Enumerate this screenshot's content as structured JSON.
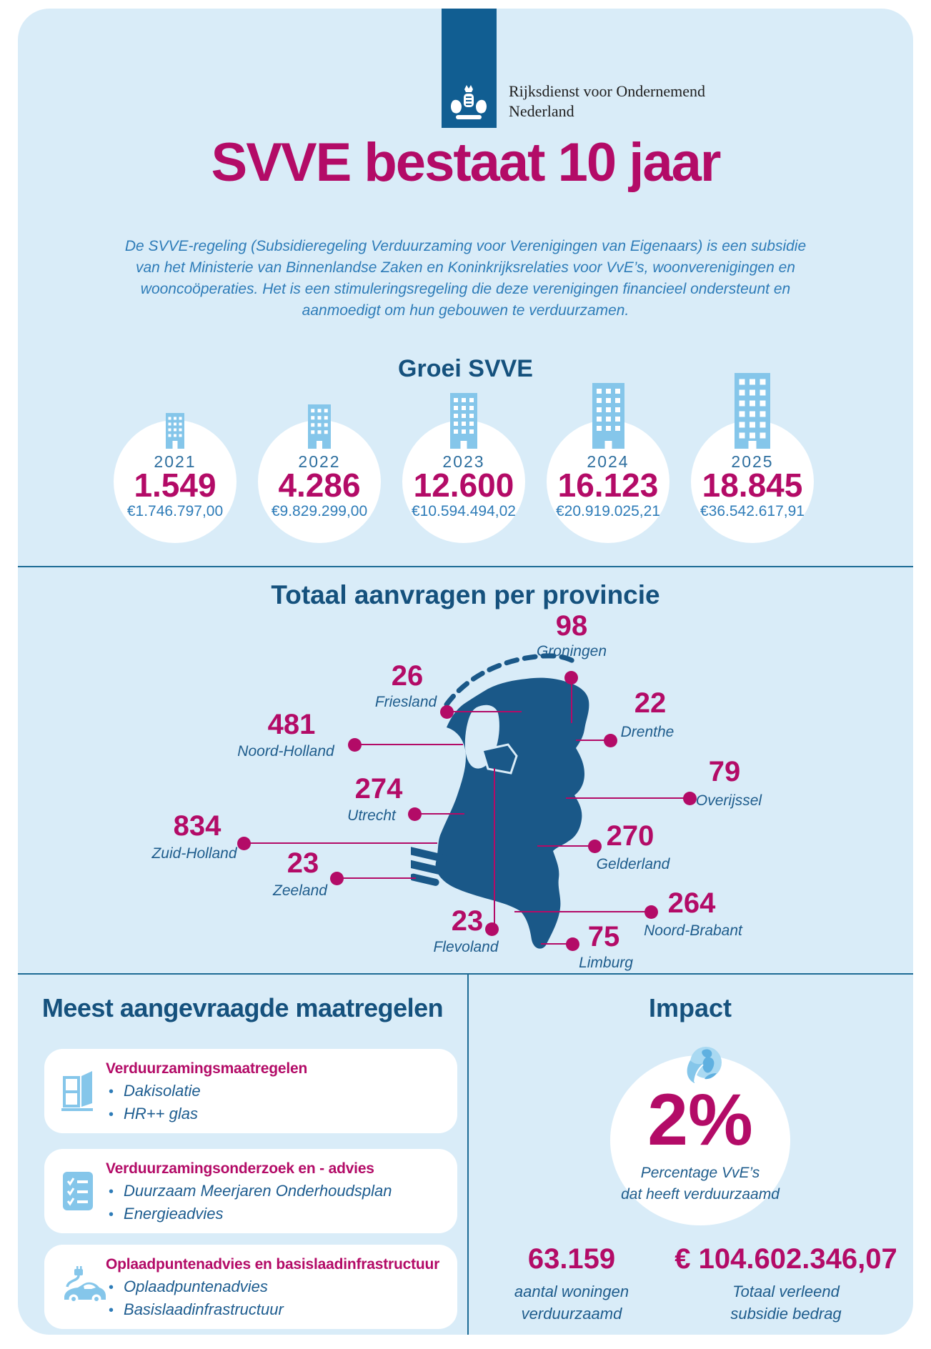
{
  "header": {
    "logo_line1": "Rijksdienst voor Ondernemend",
    "logo_line2": "Nederland"
  },
  "title": "SVVE bestaat 10 jaar",
  "description_lines": [
    "De SVVE-regeling (Subsidieregeling Verduurzaming voor Verenigingen van Eigenaars) is een subsidie",
    "van het Ministerie van Binnenlandse Zaken en Koninkrijksrelaties voor VvE’s, woonverenigingen en",
    "wooncoöperaties. Het is een stimuleringsregeling die deze verenigingen financieel ondersteunt en",
    "aanmoedigt om hun gebouwen te verduurzamen."
  ],
  "growth": {
    "heading": "Groei SVVE",
    "items": [
      {
        "year": "2021",
        "count": "1.549",
        "amount": "€1.746.797,00"
      },
      {
        "year": "2022",
        "count": "4.286",
        "amount": "€9.829.299,00"
      },
      {
        "year": "2023",
        "count": "12.600",
        "amount": "€10.594.494,02"
      },
      {
        "year": "2024",
        "count": "16.123",
        "amount": "€20.919.025,21"
      },
      {
        "year": "2025",
        "count": "18.845",
        "amount": "€36.542.617,91"
      }
    ]
  },
  "map": {
    "heading": "Totaal aanvragen per provincie",
    "provinces": [
      {
        "id": "groningen",
        "name": "Groningen",
        "value": "98"
      },
      {
        "id": "friesland",
        "name": "Friesland",
        "value": "26"
      },
      {
        "id": "drenthe",
        "name": "Drenthe",
        "value": "22"
      },
      {
        "id": "noord_holland",
        "name": "Noord-Holland",
        "value": "481"
      },
      {
        "id": "overijssel",
        "name": "Overijssel",
        "value": "79"
      },
      {
        "id": "utrecht",
        "name": "Utrecht",
        "value": "274"
      },
      {
        "id": "zuid_holland",
        "name": "Zuid-Holland",
        "value": "834"
      },
      {
        "id": "gelderland",
        "name": "Gelderland",
        "value": "270"
      },
      {
        "id": "zeeland",
        "name": "Zeeland",
        "value": "23"
      },
      {
        "id": "noord_brabant",
        "name": "Noord-Brabant",
        "value": "264"
      },
      {
        "id": "flevoland",
        "name": "Flevoland",
        "value": "23"
      },
      {
        "id": "limburg",
        "name": "Limburg",
        "value": "75"
      }
    ]
  },
  "measures": {
    "heading": "Meest aangevraagde maatregelen",
    "cards": [
      {
        "icon": "open-window-icon",
        "title": "Verduurzamingsmaatregelen",
        "bullets": [
          "Dakisolatie",
          "HR++ glas"
        ]
      },
      {
        "icon": "checklist-document-icon",
        "title": "Verduurzamingsonderzoek en - advies",
        "bullets": [
          "Duurzaam Meerjaren Onderhoudsplan",
          "Energieadvies"
        ]
      },
      {
        "icon": "ev-car-charging-icon",
        "title": "Oplaadpuntenadvies en basislaadinfrastructuur",
        "bullets": [
          "Oplaadpuntenadvies",
          "Basislaadinfrastructuur"
        ]
      }
    ]
  },
  "impact": {
    "heading": "Impact",
    "percentage": "2%",
    "percentage_caption_line1": "Percentage VvE’s",
    "percentage_caption_line2": "dat heeft verduurzaamd",
    "stats": [
      {
        "value": "63.159",
        "caption_line1": "aantal woningen",
        "caption_line2": "verduurzaamd"
      },
      {
        "value": "€ 104.602.346,07",
        "caption_line1": "Totaal verleend",
        "caption_line2": "subsidie bedrag"
      }
    ]
  },
  "chart_data": {
    "type": "bar",
    "title": "Groei SVVE",
    "categories": [
      "2021",
      "2022",
      "2023",
      "2024",
      "2025"
    ],
    "series": [
      {
        "name": "aanvragen",
        "values": [
          1549,
          4286,
          12600,
          16123,
          18845
        ]
      },
      {
        "name": "subsidiebedrag_eur",
        "values": [
          1746797.0,
          9829299.0,
          10594494.02,
          20919025.21,
          36542617.91
        ]
      }
    ],
    "map_values": {
      "Groningen": 98,
      "Friesland": 26,
      "Drenthe": 22,
      "Noord-Holland": 481,
      "Overijssel": 79,
      "Utrecht": 274,
      "Zuid-Holland": 834,
      "Gelderland": 270,
      "Zeeland": 23,
      "Noord-Brabant": 264,
      "Flevoland": 23,
      "Limburg": 75
    },
    "impact": {
      "percentage_vves_verduurzaamd": 2,
      "woningen_verduurzaamd": 63159,
      "totaal_verleend_eur": 104602346.07
    }
  },
  "colors": {
    "accent_magenta": "#b30b67",
    "heading_blue": "#15517d",
    "body_blue": "#2e7cb8",
    "label_blue": "#1e5c8c",
    "map_blue": "#1a5888",
    "icon_light_blue": "#85c6ea",
    "panel_background": "#d9ecf8",
    "banner_blue": "#115e92",
    "divider_blue": "#1d6b95"
  }
}
